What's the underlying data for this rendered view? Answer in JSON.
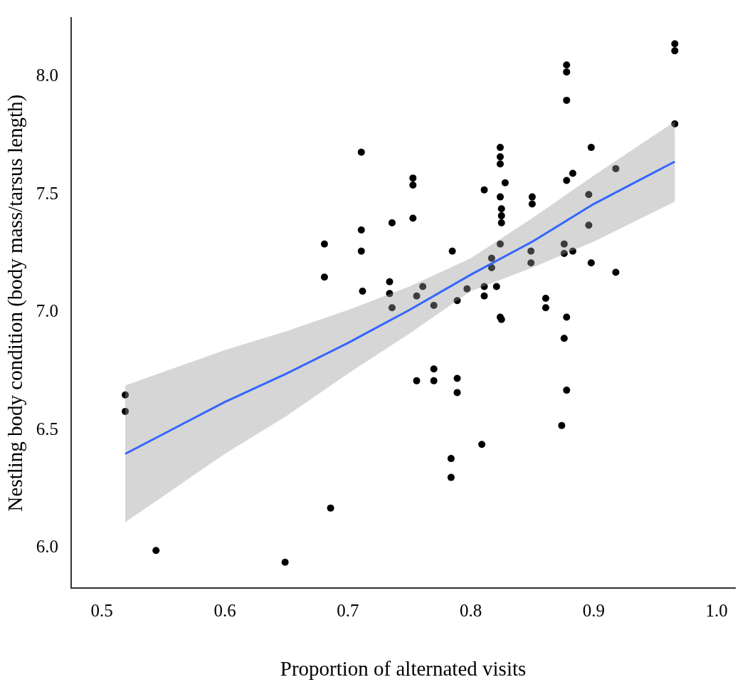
{
  "chart_data": {
    "type": "scatter",
    "xlabel": "Proportion of alternated visits",
    "ylabel": "Nestling body condition (body mass/tarsus length)",
    "xlim": [
      0.475,
      1.015
    ],
    "ylim": [
      5.83,
      8.25
    ],
    "xticks": [
      {
        "value": 0.5,
        "label": "0.5"
      },
      {
        "value": 0.6,
        "label": "0.6"
      },
      {
        "value": 0.7,
        "label": "0.7"
      },
      {
        "value": 0.8,
        "label": "0.8"
      },
      {
        "value": 0.9,
        "label": "0.9"
      },
      {
        "value": 1.0,
        "label": "1.0"
      }
    ],
    "yticks": [
      {
        "value": 6.0,
        "label": "6.0"
      },
      {
        "value": 6.5,
        "label": "6.5"
      },
      {
        "value": 7.0,
        "label": "7.0"
      },
      {
        "value": 7.5,
        "label": "7.5"
      },
      {
        "value": 8.0,
        "label": "8.0"
      }
    ],
    "grid": false,
    "legend": false,
    "marker": "circle",
    "series": [
      {
        "color": "#000000",
        "x": [
          0.519,
          0.519,
          0.544,
          0.649,
          0.686,
          0.681,
          0.681,
          0.711,
          0.711,
          0.711,
          0.712,
          0.753,
          0.753,
          0.753,
          0.736,
          0.734,
          0.734,
          0.736,
          0.756,
          0.756,
          0.761,
          0.77,
          0.77,
          0.77,
          0.785,
          0.789,
          0.789,
          0.789,
          0.784,
          0.784,
          0.797,
          0.809,
          0.811,
          0.811,
          0.811,
          0.817,
          0.817,
          0.821,
          0.824,
          0.824,
          0.824,
          0.828,
          0.824,
          0.825,
          0.825,
          0.825,
          0.824,
          0.824,
          0.825,
          0.85,
          0.85,
          0.849,
          0.849,
          0.861,
          0.861,
          0.878,
          0.878,
          0.878,
          0.878,
          0.883,
          0.876,
          0.876,
          0.883,
          0.878,
          0.876,
          0.878,
          0.874,
          0.896,
          0.896,
          0.898,
          0.898,
          0.918,
          0.918,
          0.966,
          0.966,
          0.966
        ],
        "values": [
          6.65,
          6.58,
          5.99,
          5.94,
          6.17,
          7.29,
          7.15,
          7.68,
          7.35,
          7.26,
          7.09,
          7.57,
          7.54,
          7.4,
          7.38,
          7.13,
          7.08,
          7.02,
          6.71,
          7.07,
          7.11,
          6.76,
          6.71,
          7.03,
          7.26,
          7.05,
          6.72,
          6.66,
          6.38,
          6.3,
          7.1,
          6.44,
          7.52,
          7.11,
          7.07,
          7.23,
          7.19,
          7.11,
          7.7,
          7.66,
          7.63,
          7.55,
          7.49,
          7.44,
          7.41,
          7.38,
          7.29,
          6.98,
          6.97,
          7.49,
          7.46,
          7.26,
          7.21,
          7.06,
          7.02,
          8.05,
          8.02,
          7.9,
          7.56,
          7.59,
          7.29,
          7.25,
          7.26,
          6.98,
          6.89,
          6.67,
          6.52,
          7.5,
          7.37,
          7.7,
          7.21,
          7.61,
          7.17,
          8.14,
          8.11,
          7.8
        ]
      },
      {
        "type": "line",
        "color": "#3366ff",
        "line_style": "solid",
        "marker": "none",
        "x": [
          0.519,
          0.6,
          0.65,
          0.7,
          0.75,
          0.8,
          0.85,
          0.9,
          0.966
        ],
        "values": [
          6.4,
          6.62,
          6.74,
          6.87,
          7.01,
          7.16,
          7.3,
          7.46,
          7.64
        ],
        "lower": [
          6.11,
          6.4,
          6.56,
          6.74,
          6.91,
          7.09,
          7.19,
          7.3,
          7.47
        ],
        "upper": [
          6.69,
          6.84,
          6.92,
          7.01,
          7.11,
          7.23,
          7.4,
          7.58,
          7.81
        ]
      }
    ]
  }
}
